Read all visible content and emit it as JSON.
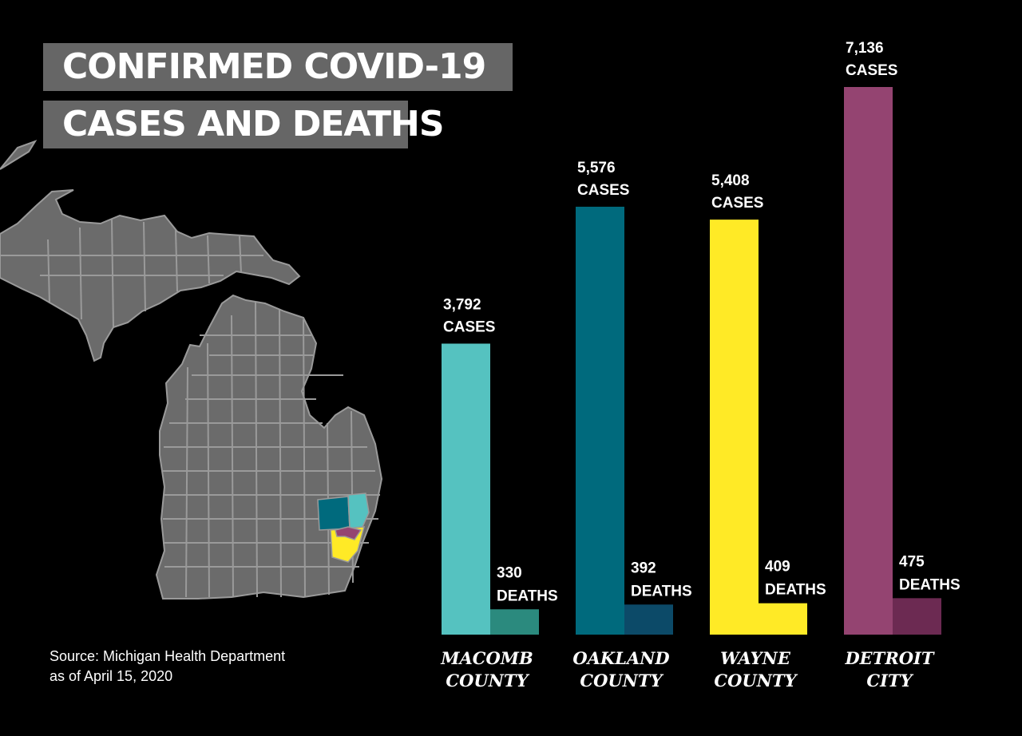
{
  "title": {
    "line1": "CONFIRMED COVID-19",
    "line2": "CASES AND DEATHS"
  },
  "source": {
    "line1": "Source: Michigan Health Department",
    "line2": "as of April 15, 2020"
  },
  "map_colors": {
    "base": "#6b6b6b",
    "border": "#9a9a9a",
    "oakland": "#006a7d",
    "macomb": "#55c2c0",
    "wayne": "#ffea26",
    "detroit": "#944471"
  },
  "chart_data": {
    "type": "bar",
    "title": "CONFIRMED COVID-19 CASES AND DEATHS",
    "categories": [
      [
        "MACOMB",
        "COUNTY"
      ],
      [
        "OAKLAND",
        "COUNTY"
      ],
      [
        "WAYNE",
        "COUNTY"
      ],
      [
        "DETROIT",
        "CITY"
      ]
    ],
    "series": [
      {
        "values": [
          3792,
          5576,
          5408,
          7136
        ],
        "labels": [
          [
            "3,792",
            "CASES"
          ],
          [
            "5,576",
            "CASES"
          ],
          [
            "5,408",
            "CASES"
          ],
          [
            "7,136",
            "CASES"
          ]
        ],
        "colors": [
          "#55c2c0",
          "#006a7d",
          "#ffea26",
          "#944471"
        ]
      },
      {
        "values": [
          330,
          392,
          409,
          475
        ],
        "labels": [
          [
            "330",
            "DEATHS"
          ],
          [
            "392",
            "DEATHS"
          ],
          [
            "409",
            "DEATHS"
          ],
          [
            "475",
            "DEATHS"
          ]
        ],
        "colors": [
          "#2b8a7e",
          "#0c4a68",
          "#ffea26",
          "#6c2a52"
        ]
      }
    ],
    "ylim": [
      0,
      7136
    ],
    "grid": false,
    "legend": "none"
  }
}
